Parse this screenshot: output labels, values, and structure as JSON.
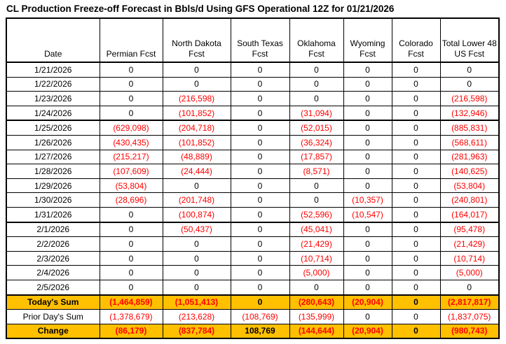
{
  "title": "CL Production Freeze-off Forecast in Bbls/d Using GFS Operational 12Z for 01/21/2026",
  "colors": {
    "negative_text": "#FF0000",
    "highlight_row": "#FFC000",
    "grid": "#000000",
    "background": "#FFFFFF"
  },
  "table": {
    "columns": [
      "Date",
      "Permian Fcst",
      "North Dakota Fcst",
      "South Texas Fcst",
      "Oklahoma Fcst",
      "Wyoming Fcst",
      "Colorado Fcst",
      "Total Lower 48 US Fcst"
    ],
    "rows": [
      {
        "date": "1/21/2026",
        "values": [
          "0",
          "0",
          "0",
          "0",
          "0",
          "0",
          "0"
        ]
      },
      {
        "date": "1/22/2026",
        "values": [
          "0",
          "0",
          "0",
          "0",
          "0",
          "0",
          "0"
        ]
      },
      {
        "date": "1/23/2026",
        "values": [
          "0",
          "(216,598)",
          "0",
          "0",
          "0",
          "0",
          "(216,598)"
        ]
      },
      {
        "date": "1/24/2026",
        "values": [
          "0",
          "(101,852)",
          "0",
          "(31,094)",
          "0",
          "0",
          "(132,946)"
        ]
      },
      {
        "date": "1/25/2026",
        "values": [
          "(629,098)",
          "(204,718)",
          "0",
          "(52,015)",
          "0",
          "0",
          "(885,831)"
        ]
      },
      {
        "date": "1/26/2026",
        "values": [
          "(430,435)",
          "(101,852)",
          "0",
          "(36,324)",
          "0",
          "0",
          "(568,611)"
        ]
      },
      {
        "date": "1/27/2026",
        "values": [
          "(215,217)",
          "(48,889)",
          "0",
          "(17,857)",
          "0",
          "0",
          "(281,963)"
        ]
      },
      {
        "date": "1/28/2026",
        "values": [
          "(107,609)",
          "(24,444)",
          "0",
          "(8,571)",
          "0",
          "0",
          "(140,625)"
        ]
      },
      {
        "date": "1/29/2026",
        "values": [
          "(53,804)",
          "0",
          "0",
          "0",
          "0",
          "0",
          "(53,804)"
        ]
      },
      {
        "date": "1/30/2026",
        "values": [
          "(28,696)",
          "(201,748)",
          "0",
          "0",
          "(10,357)",
          "0",
          "(240,801)"
        ]
      },
      {
        "date": "1/31/2026",
        "values": [
          "0",
          "(100,874)",
          "0",
          "(52,596)",
          "(10,547)",
          "0",
          "(164,017)"
        ]
      },
      {
        "date": "2/1/2026",
        "values": [
          "0",
          "(50,437)",
          "0",
          "(45,041)",
          "0",
          "0",
          "(95,478)"
        ]
      },
      {
        "date": "2/2/2026",
        "values": [
          "0",
          "0",
          "0",
          "(21,429)",
          "0",
          "0",
          "(21,429)"
        ]
      },
      {
        "date": "2/3/2026",
        "values": [
          "0",
          "0",
          "0",
          "(10,714)",
          "0",
          "0",
          "(10,714)"
        ]
      },
      {
        "date": "2/4/2026",
        "values": [
          "0",
          "0",
          "0",
          "(5,000)",
          "0",
          "0",
          "(5,000)"
        ]
      },
      {
        "date": "2/5/2026",
        "values": [
          "0",
          "0",
          "0",
          "0",
          "0",
          "0",
          "0"
        ]
      }
    ],
    "summary_rows": [
      {
        "label": "Today's Sum",
        "highlight": true,
        "values": [
          "(1,464,859)",
          "(1,051,413)",
          "0",
          "(280,643)",
          "(20,904)",
          "0",
          "(2,817,817)"
        ]
      },
      {
        "label": "Prior Day's Sum",
        "highlight": false,
        "values": [
          "(1,378,679)",
          "(213,628)",
          "(108,769)",
          "(135,999)",
          "0",
          "0",
          "(1,837,075)"
        ]
      },
      {
        "label": "Change",
        "highlight": true,
        "values": [
          "(86,179)",
          "(837,784)",
          "108,769",
          "(144,644)",
          "(20,904)",
          "0",
          "(980,743)"
        ]
      }
    ]
  }
}
